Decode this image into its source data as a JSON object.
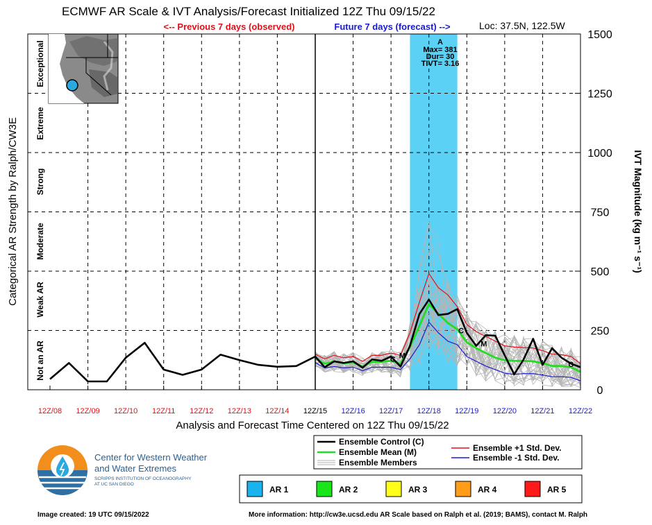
{
  "chart_data": {
    "type": "line",
    "title": "ECMWF AR Scale & IVT Analysis/Forecast Initialized 12Z Thu 09/15/22",
    "nav_previous": "<-- Previous 7 days (observed)",
    "nav_future": "Future 7 days (forecast) -->",
    "location": "Loc: 37.5N, 122.5W",
    "ylabel_left": "Categorical AR Strength by Ralph/CW3E",
    "ylabel_right": "IVT Magnitude (kg m⁻¹ s⁻¹)",
    "xlabel": "Analysis and Forecast Time Centered on 12Z Thu 09/15/22",
    "ylim": [
      0,
      1500
    ],
    "yticks": [
      "0",
      "250",
      "500",
      "750",
      "1000",
      "1250",
      "1500"
    ],
    "categories_ar": [
      "Not an AR",
      "Weak AR",
      "Moderate",
      "Strong",
      "Extreme",
      "Exceptional"
    ],
    "x_ticks": [
      {
        "label": "12Z/08",
        "day": -7,
        "color": "#e0101a"
      },
      {
        "label": "12Z/09",
        "day": -6,
        "color": "#e0101a"
      },
      {
        "label": "12Z/10",
        "day": -5,
        "color": "#e0101a"
      },
      {
        "label": "12Z/11",
        "day": -4,
        "color": "#e0101a"
      },
      {
        "label": "12Z/12",
        "day": -3,
        "color": "#e0101a"
      },
      {
        "label": "12Z/13",
        "day": -2,
        "color": "#e0101a"
      },
      {
        "label": "12Z/14",
        "day": -1,
        "color": "#e0101a"
      },
      {
        "label": "12Z/15",
        "day": 0,
        "color": "#000000"
      },
      {
        "label": "12Z/16",
        "day": 1,
        "color": "#1a1ad0"
      },
      {
        "label": "12Z/17",
        "day": 2,
        "color": "#1a1ad0"
      },
      {
        "label": "12Z/18",
        "day": 3,
        "color": "#1a1ad0"
      },
      {
        "label": "12Z/19",
        "day": 4,
        "color": "#1a1ad0"
      },
      {
        "label": "12Z/20",
        "day": 5,
        "color": "#1a1ad0"
      },
      {
        "label": "12Z/21",
        "day": 6,
        "color": "#1a1ad0"
      },
      {
        "label": "12Z/22",
        "day": 7,
        "color": "#1a1ad0"
      }
    ],
    "ar_window": {
      "start": 2.5,
      "end": 3.75,
      "color": "#5bd1f6"
    },
    "annotation": {
      "label": "A",
      "max": "Max= 381",
      "dur": "Dur= 30",
      "tivt": "TIVT= 3.16"
    },
    "series": [
      {
        "name": "Ensemble Control (C)",
        "color": "#000000",
        "x": [
          -7,
          -6.5,
          -6,
          -5.5,
          -5,
          -4.5,
          -4,
          -3.5,
          -3,
          -2.5,
          -2,
          -1.5,
          -1,
          -0.5,
          0,
          0.25,
          0.5,
          0.75,
          1,
          1.25,
          1.5,
          1.75,
          2,
          2.25,
          2.5,
          2.75,
          3,
          3.25,
          3.5,
          3.75,
          4,
          4.25,
          4.5,
          4.75,
          5,
          5.25,
          5.5,
          5.75,
          6,
          6.25,
          6.5,
          6.75,
          7
        ],
        "y": [
          45,
          113,
          35,
          35,
          135,
          198,
          85,
          63,
          85,
          148,
          125,
          105,
          97,
          100,
          140,
          95,
          120,
          113,
          120,
          93,
          128,
          122,
          140,
          98,
          185,
          320,
          380,
          315,
          320,
          340,
          240,
          185,
          230,
          228,
          145,
          65,
          128,
          215,
          105,
          175,
          135,
          110,
          95
        ]
      },
      {
        "name": "Ensemble Mean (M)",
        "color": "#22dd22",
        "x": [
          0,
          0.25,
          0.5,
          0.75,
          1,
          1.25,
          1.5,
          1.75,
          2,
          2.25,
          2.5,
          2.75,
          3,
          3.25,
          3.5,
          3.75,
          4,
          4.25,
          4.5,
          4.75,
          5,
          5.25,
          5.5,
          5.75,
          6,
          6.25,
          6.5,
          6.75,
          7
        ],
        "y": [
          132,
          110,
          120,
          112,
          115,
          98,
          118,
          118,
          122,
          110,
          180,
          270,
          362,
          320,
          282,
          255,
          200,
          175,
          155,
          135,
          125,
          122,
          122,
          120,
          112,
          100,
          100,
          95,
          75
        ]
      },
      {
        "name": "Ensemble +1 Std. Dev.",
        "color": "#e0101a",
        "x": [
          0,
          0.25,
          0.5,
          0.75,
          1,
          1.25,
          1.5,
          1.75,
          2,
          2.25,
          2.5,
          2.75,
          3,
          3.25,
          3.5,
          3.75,
          4,
          4.25,
          4.5,
          4.75,
          5,
          5.25,
          5.5,
          5.75,
          6,
          6.25,
          6.5,
          6.75,
          7
        ],
        "y": [
          150,
          130,
          145,
          135,
          140,
          120,
          145,
          145,
          155,
          145,
          240,
          370,
          490,
          430,
          400,
          350,
          275,
          245,
          225,
          205,
          185,
          180,
          178,
          176,
          165,
          150,
          148,
          140,
          110
        ]
      },
      {
        "name": "Ensemble -1 Std. Dev.",
        "color": "#1a1ad0",
        "x": [
          0,
          0.25,
          0.5,
          0.75,
          1,
          1.25,
          1.5,
          1.75,
          2,
          2.25,
          2.5,
          2.75,
          3,
          3.25,
          3.5,
          3.75,
          4,
          4.25,
          4.5,
          4.75,
          5,
          5.25,
          5.5,
          5.75,
          6,
          6.25,
          6.5,
          6.75,
          7
        ],
        "y": [
          115,
          92,
          98,
          92,
          95,
          80,
          95,
          95,
          95,
          85,
          130,
          190,
          285,
          240,
          205,
          190,
          140,
          120,
          100,
          85,
          70,
          65,
          68,
          68,
          62,
          55,
          55,
          52,
          38
        ]
      }
    ],
    "markers": [
      {
        "glyph": "C",
        "x": 2.05,
        "y": 130
      },
      {
        "glyph": "M",
        "x": 2.3,
        "y": 145
      },
      {
        "glyph": "C",
        "x": 3.85,
        "y": 250
      },
      {
        "glyph": "M",
        "x": 4.45,
        "y": 195
      },
      {
        "glyph": "C",
        "x": 6.75,
        "y": 108
      }
    ]
  },
  "map_inset": {
    "marker_color": "#2aa8e0"
  },
  "legend": {
    "control": "Ensemble Control (C)",
    "mean": "Ensemble Mean (M)",
    "members": "Ensemble Members",
    "plus": "Ensemble +1 Std. Dev.",
    "minus": "Ensemble -1 Std. Dev."
  },
  "ar_legend": [
    {
      "label": "AR 1",
      "color": "#19b4ee"
    },
    {
      "label": "AR 2",
      "color": "#19e619"
    },
    {
      "label": "AR 3",
      "color": "#ffff19"
    },
    {
      "label": "AR 4",
      "color": "#ff9d19"
    },
    {
      "label": "AR 5",
      "color": "#ff1919"
    }
  ],
  "logo": {
    "line1": "Center for Western Weather",
    "line2": "and Water Extremes",
    "line3": "SCRIPPS INSTITUTION OF OCEANOGRAPHY",
    "line4": "AT UC SAN DIEGO"
  },
  "footer": {
    "created": "Image created: 19 UTC 09/15/2022",
    "info": "More information: http://cw3e.ucsd.edu  AR Scale based on Ralph et al. (2019; BAMS), contact M. Ralph"
  }
}
